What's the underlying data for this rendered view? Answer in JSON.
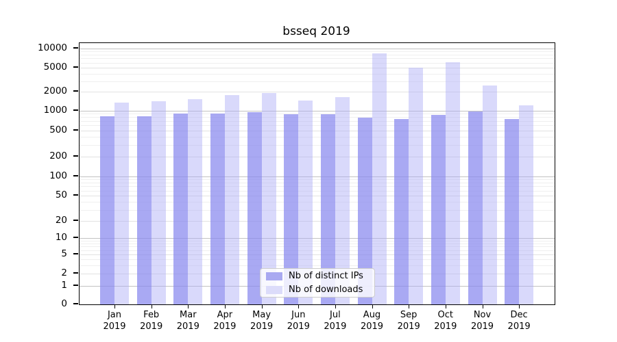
{
  "chart_data": {
    "type": "bar",
    "title": "bsseq 2019",
    "categories": [
      "Jan",
      "Feb",
      "Mar",
      "Apr",
      "May",
      "Jun",
      "Jul",
      "Aug",
      "Sep",
      "Oct",
      "Nov",
      "Dec"
    ],
    "category_year": "2019",
    "series": [
      {
        "name": "Nb of distinct IPs",
        "color": "#8888ee",
        "values": [
          820,
          830,
          900,
          920,
          960,
          890,
          880,
          790,
          750,
          860,
          970,
          745
        ]
      },
      {
        "name": "Nb of downloads",
        "color": "#ccccf8",
        "values": [
          1350,
          1400,
          1520,
          1790,
          1890,
          1460,
          1660,
          8400,
          5050,
          6050,
          2550,
          1220
        ]
      }
    ],
    "y_scale": "log-with-zero",
    "y_ticks": [
      0,
      1,
      2,
      5,
      10,
      20,
      50,
      100,
      200,
      500,
      1000,
      2000,
      5000,
      10000
    ],
    "y_range": [
      0,
      12000
    ],
    "grid": "horizontal",
    "legend_position": "bottom-center"
  }
}
